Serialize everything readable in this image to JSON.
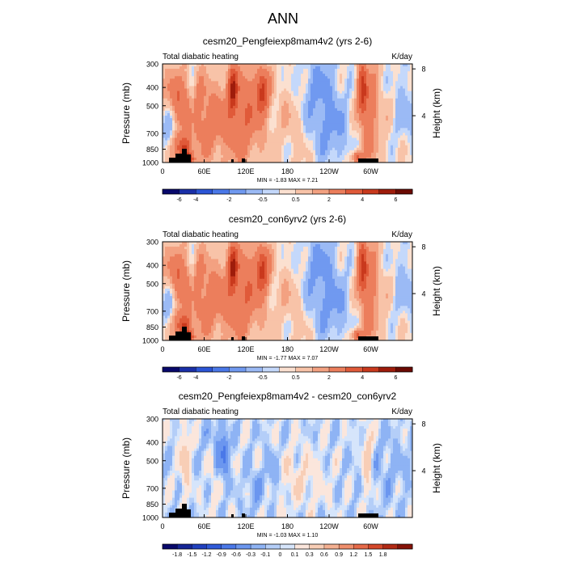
{
  "figure_title": "ANN",
  "chart_data": [
    {
      "type": "heatmap",
      "title": "cesm20_Pengfeiexp8mam4v2 (yrs 2-6)",
      "left_label": "Total diabatic heating",
      "units": "K/day",
      "ylabel": "Pressure (mb)",
      "ylabel_right": "Height (km)",
      "y_ticks": [
        "300",
        "400",
        "500",
        "700",
        "850",
        "1000"
      ],
      "y_ticks_right": [
        "8",
        "4"
      ],
      "x_ticks": [
        "0",
        "60E",
        "120E",
        "180",
        "120W",
        "60W"
      ],
      "stats": "MIN =  -1.83  MAX =   7.21",
      "colorbar_labels": [
        "-6",
        "-4",
        "-2",
        "-0.5",
        "0.5",
        "2",
        "4",
        "6"
      ],
      "field": "full"
    },
    {
      "type": "heatmap",
      "title": "cesm20_con6yrv2 (yrs 2-6)",
      "left_label": "Total diabatic heating",
      "units": "K/day",
      "ylabel": "Pressure (mb)",
      "ylabel_right": "Height (km)",
      "y_ticks": [
        "300",
        "400",
        "500",
        "700",
        "850",
        "1000"
      ],
      "y_ticks_right": [
        "8",
        "4"
      ],
      "x_ticks": [
        "0",
        "60E",
        "120E",
        "180",
        "120W",
        "60W"
      ],
      "stats": "MIN =  -1.77  MAX =   7.07",
      "colorbar_labels": [
        "-6",
        "-4",
        "-2",
        "-0.5",
        "0.5",
        "2",
        "4",
        "6"
      ],
      "field": "full"
    },
    {
      "type": "heatmap",
      "title": "cesm20_Pengfeiexp8mam4v2 - cesm20_con6yrv2",
      "left_label": "Total diabatic heating",
      "units": "K/day",
      "ylabel": "Pressure (mb)",
      "ylabel_right": "Height (km)",
      "y_ticks": [
        "300",
        "400",
        "500",
        "700",
        "850",
        "1000"
      ],
      "y_ticks_right": [
        "8",
        "4"
      ],
      "x_ticks": [
        "0",
        "60E",
        "120E",
        "180",
        "120W",
        "60W"
      ],
      "stats": "MIN =  -1.03  MAX =  1.10",
      "colorbar_labels": [
        "-1.8",
        "-1.5",
        "-1.2",
        "-0.9",
        "-0.6",
        "-0.3",
        "-0.1",
        "0",
        "0.1",
        "0.3",
        "0.6",
        "0.9",
        "1.2",
        "1.5",
        "1.8"
      ],
      "field": "diff"
    }
  ],
  "colors": {
    "full": [
      "#08086b",
      "#1a2fa8",
      "#2b55d6",
      "#4a78e8",
      "#7099f0",
      "#9bbaf5",
      "#c4d8fb",
      "#fbe0d0",
      "#f8c3a8",
      "#f3a181",
      "#ec7e5c",
      "#e05a39",
      "#c9391d",
      "#9e1c0b",
      "#6b0a03"
    ],
    "diff": [
      "#08086b",
      "#142596",
      "#2040bf",
      "#2f5ad9",
      "#4a78e8",
      "#6b96ef",
      "#8eb3f4",
      "#b4cef8",
      "#d6e5fb",
      "#fbe6dc",
      "#f8ceb6",
      "#f4b091",
      "#ef8e6c",
      "#e66a49",
      "#d4482a",
      "#b22a14",
      "#861308"
    ]
  }
}
